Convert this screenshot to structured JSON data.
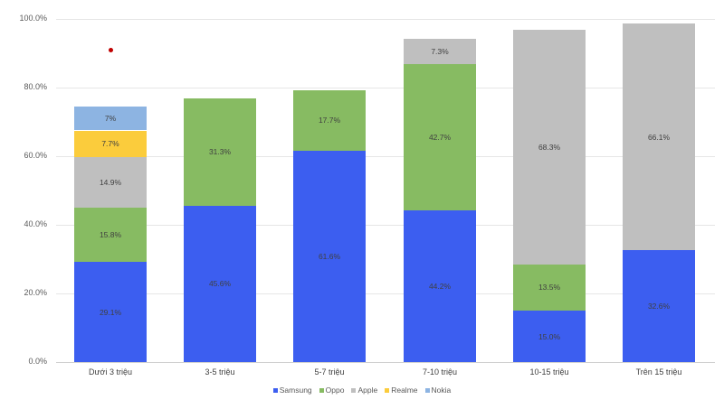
{
  "chart_data": {
    "type": "bar",
    "stacked": true,
    "title": "",
    "xlabel": "",
    "ylabel": "",
    "ylim": [
      0,
      100
    ],
    "y_ticks": [
      "0.0%",
      "20.0%",
      "40.0%",
      "60.0%",
      "80.0%",
      "100.0%"
    ],
    "grid": true,
    "legend_position": "bottom",
    "categories": [
      "Dưới 3 triệu",
      "3-5 triệu",
      "5-7 triệu",
      "7-10 triệu",
      "10-15 triệu",
      "Trên 15 triệu"
    ],
    "series": [
      {
        "name": "Samsung",
        "color": "#3c5ef0",
        "values": [
          29.1,
          45.6,
          61.6,
          44.2,
          15.0,
          32.6
        ],
        "labels": [
          "29.1%",
          "45.6%",
          "61.6%",
          "44.2%",
          "15.0%",
          "32.6%"
        ]
      },
      {
        "name": "Oppo",
        "color": "#87bb62",
        "values": [
          15.8,
          31.3,
          17.7,
          42.7,
          13.5,
          null
        ],
        "labels": [
          "15.8%",
          "31.3%",
          "17.7%",
          "42.7%",
          "13.5%",
          null
        ]
      },
      {
        "name": "Apple",
        "color": "#bfbfbf",
        "values": [
          14.9,
          null,
          null,
          7.3,
          68.3,
          66.1
        ],
        "labels": [
          "14.9%",
          null,
          null,
          "7.3%",
          "68.3%",
          "66.1%"
        ]
      },
      {
        "name": "Realme",
        "color": "#fbcc3c",
        "values": [
          7.7,
          null,
          null,
          null,
          null,
          null
        ],
        "labels": [
          "7.7%",
          null,
          null,
          null,
          null,
          null
        ]
      },
      {
        "name": "Nokia",
        "color": "#8db4e2",
        "values": [
          7.0,
          null,
          null,
          null,
          null,
          null
        ],
        "labels": [
          "7%",
          null,
          null,
          null,
          null,
          null
        ]
      }
    ],
    "annotations": [
      {
        "type": "marker",
        "color": "#c00000",
        "category": "Dưới 3 triệu",
        "y": 91
      }
    ]
  }
}
